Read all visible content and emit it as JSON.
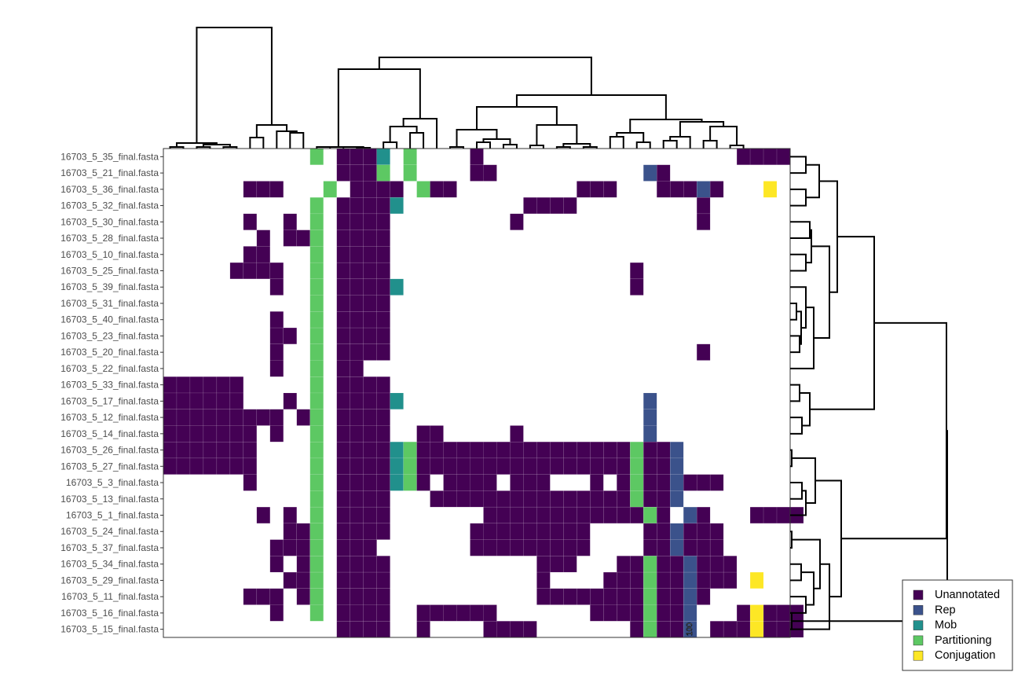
{
  "chart_data": {
    "type": "heatmap",
    "title": "",
    "xlabel": "",
    "ylabel": "",
    "rows": [
      "16703_5_35_final.fasta",
      "16703_5_21_final.fasta",
      "16703_5_36_final.fasta",
      "16703_5_32_final.fasta",
      "16703_5_30_final.fasta",
      "16703_5_28_final.fasta",
      "16703_5_10_final.fasta",
      "16703_5_25_final.fasta",
      "16703_5_39_final.fasta",
      "16703_5_31_final.fasta",
      "16703_5_40_final.fasta",
      "16703_5_23_final.fasta",
      "16703_5_20_final.fasta",
      "16703_5_22_final.fasta",
      "16703_5_33_final.fasta",
      "16703_5_17_final.fasta",
      "16703_5_12_final.fasta",
      "16703_5_14_final.fasta",
      "16703_5_26_final.fasta",
      "16703_5_27_final.fasta",
      "16703_5_3_final.fasta",
      "16703_5_13_final.fasta",
      "16703_5_1_final.fasta",
      "16703_5_24_final.fasta",
      "16703_5_37_final.fasta",
      "16703_5_34_final.fasta",
      "16703_5_29_final.fasta",
      "16703_5_11_final.fasta",
      "16703_5_16_final.fasta",
      "16703_5_15_final.fasta"
    ],
    "n_columns": 47,
    "column_labels": [],
    "categories": [
      {
        "code": "U",
        "name": "Unannotated",
        "color": "#440154"
      },
      {
        "code": "R",
        "name": "Rep",
        "color": "#3B528B"
      },
      {
        "code": "M",
        "name": "Mob",
        "color": "#21908C"
      },
      {
        "code": "P",
        "name": "Partitioning",
        "color": "#5DC863"
      },
      {
        "code": "C",
        "name": "Conjugation",
        "color": "#FDE725"
      }
    ],
    "matrix": [
      "...........P.UUUM.P....U...................UUUU",
      ".............UUUP.P....UU...........RU..........",
      "......UUU...P.UUUU.PUU.........UUU...UUURU...C..",
      "...........P.UUUUM.........UUUU.........U.......",
      "......U..U.P.UUUU.........U.............U.......",
      ".......U.UUP.UUUU...............................",
      "......UU...P.UUUU...............................",
      ".....UUUU..P.UUUU..................U............",
      "........U..P.UUUUM.................U............",
      "...........P.UUUU...............................",
      "........U..P.UUUU...............................",
      "........UU.P.UUUU...............................",
      "........U..P.UUUU.......................U.......",
      "........U..P.UU.................................",
      "UUUUUU.....P.UUUU...............................",
      "UUUUUU...U.P.UUUUM..................R...........",
      "UUUUUUUUU.UP.UUUU...................R...........",
      "UUUUUUU.U..P.UUUU..UU.....U.........R...........",
      "UUUUUUU....P.UUUUMPUUUUUUUUUUUUUUUUPUUR.........",
      "UUUUUUU....P.UUUUMPUUUUUUUUUUUUUUUUPUUR.........",
      "......U....P.UUUUMPU.UUUU.UUU...U.UPUURUUU......",
      "...........P.UUUU...UUUUUUUUUUUUUUUPUUR.........",
      ".......U.U.P.UUUU.......UUUUUUUUUUUUPU.RU...UUUU",
      ".........UUP.UUUU......UUUUUUUUU....UURUUU......",
      "........UUUP.UUU.......UUUUUUUUU....UURUUU......",
      "........U.UP.UUUU...........UUU...UUPUURUUU.....",
      ".........UUP.UUUU...........U....UUUPUURUUU.C...",
      "......UUU.UP.UUUU...........UUUUUUUUPUURU.......",
      "........U..P.UUUU..UUUUUU.......UUUUPUUR...UCUUU",
      ".............UUUU..U....UUUU.......UPUUR.UUUCUUU"
    ],
    "legend": [
      "Unannotated",
      "Rep",
      "Mob",
      "Partitioning",
      "Conjugation"
    ],
    "legend_position": "bottom-right",
    "grid": false,
    "column_dendrogram": true,
    "row_dendrogram": true,
    "cell_annotation": {
      "row": 29,
      "column": 39,
      "text": "100"
    }
  }
}
